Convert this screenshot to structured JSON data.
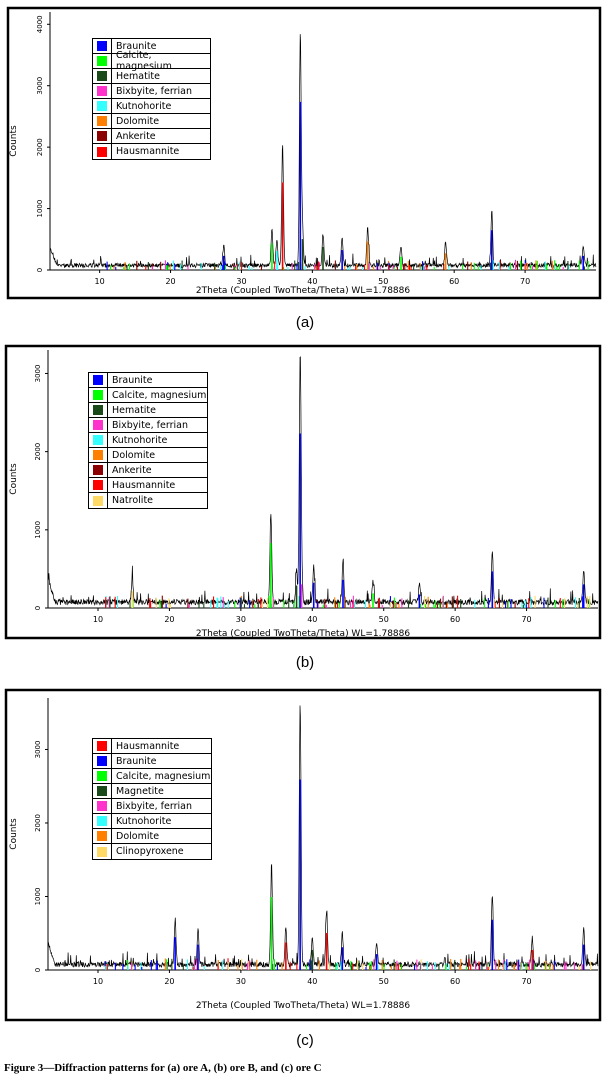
{
  "caption": "Figure 3—Diffraction patterns for (a) ore A, (b) ore B, and (c) ore C",
  "chart_data": [
    {
      "type": "line",
      "panel_label": "(a)",
      "xlabel": "2Theta (Coupled TwoTheta/Theta) WL=1.78886",
      "ylabel": "Counts",
      "xlim": [
        3,
        80
      ],
      "ylim": [
        0,
        4200
      ],
      "xticks": [
        10,
        20,
        30,
        40,
        50,
        60,
        70
      ],
      "yticks": [
        0,
        1000,
        2000,
        3000,
        4000
      ],
      "legend_position": "top-left",
      "legend": [
        {
          "name": "Braunite",
          "color": "#0000ff"
        },
        {
          "name": "Calcite, magnesium",
          "color": "#00ff00"
        },
        {
          "name": "Hematite",
          "color": "#1a4a1a"
        },
        {
          "name": "Bixbyite, ferrian",
          "color": "#ff33cc"
        },
        {
          "name": "Kutnohorite",
          "color": "#33ffff"
        },
        {
          "name": "Dolomite",
          "color": "#ff7f00"
        },
        {
          "name": "Ankerite",
          "color": "#8b0000"
        },
        {
          "name": "Hausmannite",
          "color": "#ff0000"
        }
      ],
      "peaks": [
        {
          "x": 27.5,
          "y": 320,
          "phase": "Braunite"
        },
        {
          "x": 34.3,
          "y": 600,
          "phase": "Calcite, magnesium"
        },
        {
          "x": 35.0,
          "y": 430,
          "phase": "Kutnohorite"
        },
        {
          "x": 35.8,
          "y": 1980,
          "phase": "Hausmannite"
        },
        {
          "x": 38.3,
          "y": 3800,
          "phase": "Braunite"
        },
        {
          "x": 38.6,
          "y": 700,
          "phase": "Hematite"
        },
        {
          "x": 41.5,
          "y": 520,
          "phase": "Hematite"
        },
        {
          "x": 44.2,
          "y": 450,
          "phase": "Braunite"
        },
        {
          "x": 47.8,
          "y": 650,
          "phase": "Dolomite"
        },
        {
          "x": 52.5,
          "y": 300,
          "phase": "Calcite, magnesium"
        },
        {
          "x": 58.8,
          "y": 380,
          "phase": "Dolomite"
        },
        {
          "x": 65.3,
          "y": 900,
          "phase": "Braunite"
        },
        {
          "x": 78.2,
          "y": 320,
          "phase": "Braunite"
        }
      ]
    },
    {
      "type": "line",
      "panel_label": "(b)",
      "xlabel": "2Theta (Coupled TwoTheta/Theta) WL=1.78886",
      "ylabel": "Counts",
      "xlim": [
        3,
        80
      ],
      "ylim": [
        0,
        3300
      ],
      "xticks": [
        10,
        20,
        30,
        40,
        50,
        60,
        70
      ],
      "yticks": [
        0,
        1000,
        2000,
        3000
      ],
      "legend_position": "top-left",
      "legend": [
        {
          "name": "Braunite",
          "color": "#0000ff"
        },
        {
          "name": "Calcite, magnesium",
          "color": "#00ff00"
        },
        {
          "name": "Hematite",
          "color": "#1a4a1a"
        },
        {
          "name": "Bixbyite, ferrian",
          "color": "#ff33cc"
        },
        {
          "name": "Kutnohorite",
          "color": "#33ffff"
        },
        {
          "name": "Dolomite",
          "color": "#ff7f00"
        },
        {
          "name": "Ankerite",
          "color": "#8b0000"
        },
        {
          "name": "Hausmannite",
          "color": "#ff0000"
        },
        {
          "name": "Natrolite",
          "color": "#ffd966"
        }
      ],
      "peaks": [
        {
          "x": 14.8,
          "y": 300,
          "phase": "Natrolite"
        },
        {
          "x": 34.2,
          "y": 1150,
          "phase": "Calcite, magnesium"
        },
        {
          "x": 37.8,
          "y": 400,
          "phase": "Hematite"
        },
        {
          "x": 38.3,
          "y": 3100,
          "phase": "Braunite"
        },
        {
          "x": 38.5,
          "y": 420,
          "phase": "Bixbyite, ferrian"
        },
        {
          "x": 40.2,
          "y": 450,
          "phase": "Braunite"
        },
        {
          "x": 44.3,
          "y": 500,
          "phase": "Braunite"
        },
        {
          "x": 48.5,
          "y": 260,
          "phase": "Calcite, magnesium"
        },
        {
          "x": 55.0,
          "y": 240,
          "phase": "Braunite"
        },
        {
          "x": 65.2,
          "y": 650,
          "phase": "Braunite"
        },
        {
          "x": 78.0,
          "y": 420,
          "phase": "Braunite"
        }
      ]
    },
    {
      "type": "line",
      "panel_label": "(c)",
      "xlabel": "2Theta (Coupled TwoTheta/Theta) WL=1.78886",
      "ylabel": "Counts",
      "xlim": [
        3,
        80
      ],
      "ylim": [
        0,
        3700
      ],
      "xticks": [
        10,
        20,
        30,
        40,
        50,
        60,
        70
      ],
      "yticks": [
        0,
        1000,
        2000,
        3000
      ],
      "legend_position": "top-left",
      "legend": [
        {
          "name": "Hausmannite",
          "color": "#ff0000"
        },
        {
          "name": "Braunite",
          "color": "#0000ff"
        },
        {
          "name": "Calcite, magnesium",
          "color": "#00ff00"
        },
        {
          "name": "Magnetite",
          "color": "#1a4a1a"
        },
        {
          "name": "Bixbyite, ferrian",
          "color": "#ff33cc"
        },
        {
          "name": "Kutnohorite",
          "color": "#33ffff"
        },
        {
          "name": "Dolomite",
          "color": "#ff7f00"
        },
        {
          "name": "Clinopyroxene",
          "color": "#ffd966"
        }
      ],
      "peaks": [
        {
          "x": 20.8,
          "y": 620,
          "phase": "Braunite"
        },
        {
          "x": 24.0,
          "y": 480,
          "phase": "Braunite"
        },
        {
          "x": 34.3,
          "y": 1380,
          "phase": "Calcite, magnesium"
        },
        {
          "x": 36.3,
          "y": 520,
          "phase": "Hausmannite"
        },
        {
          "x": 38.3,
          "y": 3600,
          "phase": "Braunite"
        },
        {
          "x": 40.0,
          "y": 380,
          "phase": "Magnetite"
        },
        {
          "x": 42.0,
          "y": 700,
          "phase": "Hausmannite"
        },
        {
          "x": 44.2,
          "y": 430,
          "phase": "Braunite"
        },
        {
          "x": 49.0,
          "y": 300,
          "phase": "Braunite"
        },
        {
          "x": 65.2,
          "y": 950,
          "phase": "Braunite"
        },
        {
          "x": 70.8,
          "y": 380,
          "phase": "Hausmannite"
        },
        {
          "x": 78.0,
          "y": 480,
          "phase": "Braunite"
        }
      ]
    }
  ]
}
